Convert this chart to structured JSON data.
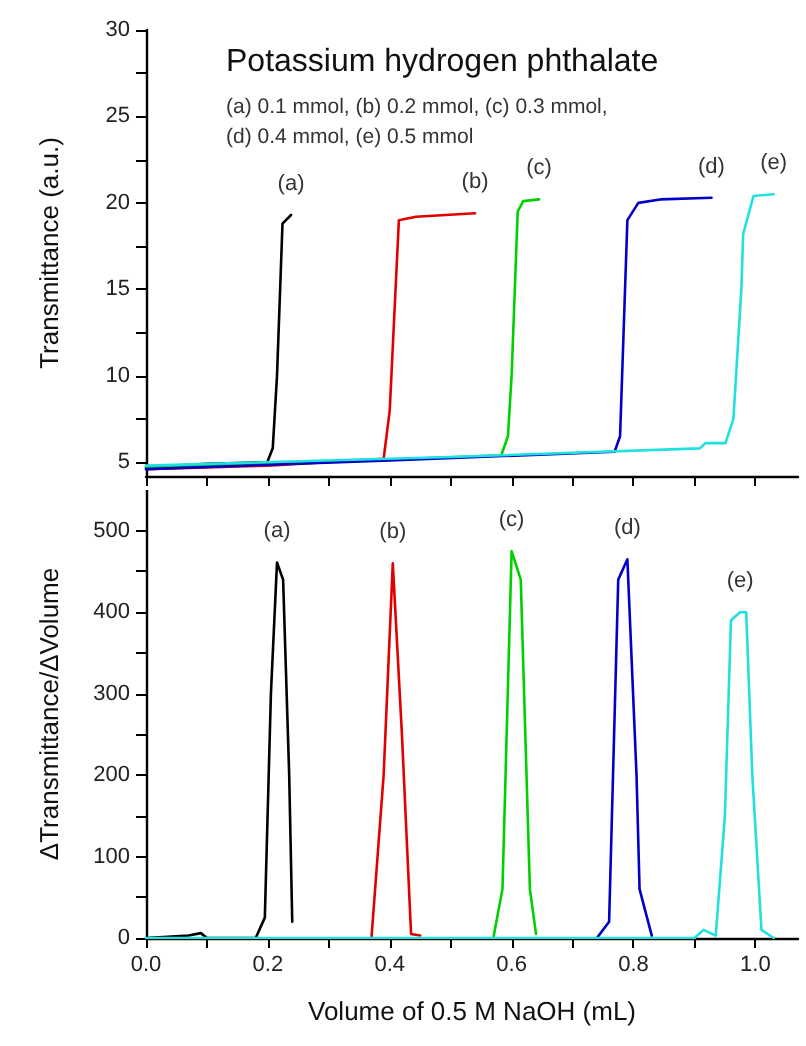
{
  "chart_data": [
    {
      "type": "line",
      "title": "Potassium hydrogen phthalate",
      "subtitle": "(a) 0.1 mmol, (b) 0.2 mmol, (c) 0.3 mmol,\n(d) 0.4 mmol, (e) 0.5 mmol",
      "ylabel": "Transmittance (a.u.)",
      "xlim": [
        0,
        1.07
      ],
      "xticks": [
        {
          "value": 0,
          "label": null
        },
        {
          "value": 0.1,
          "label": null
        },
        {
          "value": 0.2,
          "label": null
        },
        {
          "value": 0.3,
          "label": null
        },
        {
          "value": 0.4,
          "label": null
        },
        {
          "value": 0.5,
          "label": null
        },
        {
          "value": 0.6,
          "label": null
        },
        {
          "value": 0.7,
          "label": null
        },
        {
          "value": 0.8,
          "label": null
        },
        {
          "value": 0.9,
          "label": null
        },
        {
          "value": 1,
          "label": null
        }
      ],
      "ylim": [
        4.2,
        30
      ],
      "yticks": [
        5,
        {
          "value": 7.5,
          "label": null
        },
        10,
        {
          "value": 12.5,
          "label": null
        },
        15,
        {
          "value": 17.5,
          "label": null
        },
        20,
        {
          "value": 22.5,
          "label": null
        },
        25,
        {
          "value": 27.5,
          "label": null
        },
        30
      ],
      "tick_labels": "y",
      "grid": false,
      "marker": "none",
      "line_style": "solid",
      "series": [
        {
          "name": "(a)",
          "color": "#000000",
          "x": [
            0,
            0.1,
            0.199,
            0.208,
            0.215,
            0.224,
            0.238
          ],
          "values": [
            4.7,
            4.9,
            5.0,
            5.8,
            10,
            18.8,
            19.3
          ]
        },
        {
          "name": "(b)",
          "color": "#e00000",
          "x": [
            0,
            0.2,
            0.39,
            0.4,
            0.415,
            0.443,
            0.54
          ],
          "values": [
            4.6,
            4.8,
            5.2,
            8,
            19.0,
            19.2,
            19.4
          ]
        },
        {
          "name": "(c)",
          "color": "#00d000",
          "x": [
            0,
            0.3,
            0.583,
            0.594,
            0.6,
            0.61,
            0.619,
            0.645
          ],
          "values": [
            4.7,
            5.0,
            5.4,
            6.5,
            10,
            19.5,
            20.1,
            20.2
          ]
        },
        {
          "name": "(d)",
          "color": "#0000c8",
          "x": [
            0,
            0.4,
            0.769,
            0.778,
            0.79,
            0.808,
            0.844,
            0.928
          ],
          "values": [
            4.6,
            5.1,
            5.6,
            6.5,
            19,
            20.0,
            20.2,
            20.3
          ]
        },
        {
          "name": "(e)",
          "color": "#20e0e0",
          "x": [
            0,
            0.5,
            0.909,
            0.918,
            0.951,
            0.964,
            0.977,
            0.98,
            0.997,
            1.03
          ],
          "values": [
            4.8,
            5.3,
            5.8,
            6.1,
            6.1,
            7.5,
            15,
            18.2,
            20.4,
            20.5
          ]
        }
      ]
    },
    {
      "type": "line",
      "ylabel": "ΔTransmittance/ΔVolume",
      "xlabel": "Volume of 0.5 M NaOH (mL)",
      "xlim": [
        0,
        1.07
      ],
      "xticks": [
        {
          "value": 0,
          "label": "0.0"
        },
        {
          "value": 0.1,
          "label": null
        },
        {
          "value": 0.2,
          "label": "0.2"
        },
        {
          "value": 0.3,
          "label": null
        },
        {
          "value": 0.4,
          "label": "0.4"
        },
        {
          "value": 0.5,
          "label": null
        },
        {
          "value": 0.6,
          "label": "0.6"
        },
        {
          "value": 0.7,
          "label": null
        },
        {
          "value": 0.8,
          "label": "0.8"
        },
        {
          "value": 0.9,
          "label": null
        },
        {
          "value": 1,
          "label": "1.0"
        }
      ],
      "ylim": [
        0,
        550
      ],
      "yticks": [
        0,
        {
          "value": 50,
          "label": null
        },
        100,
        {
          "value": 150,
          "label": null
        },
        200,
        {
          "value": 250,
          "label": null
        },
        300,
        {
          "value": 350,
          "label": null
        },
        400,
        {
          "value": 450,
          "label": null
        },
        500
      ],
      "grid": false,
      "marker": "none",
      "line_style": "solid",
      "series": [
        {
          "name": "(a)",
          "color": "#000000",
          "x": [
            0,
            0.07,
            0.09,
            0.1,
            0.18,
            0.195,
            0.205,
            0.215,
            0.225,
            0.235,
            0.24
          ],
          "values": [
            0,
            3,
            6,
            0,
            0,
            25,
            300,
            461,
            440,
            200,
            20
          ]
        },
        {
          "name": "(b)",
          "color": "#e00000",
          "x": [
            0.37,
            0.39,
            0.405,
            0.42,
            0.435,
            0.45
          ],
          "values": [
            0,
            200,
            460,
            250,
            5,
            3
          ]
        },
        {
          "name": "(c)",
          "color": "#00d000",
          "x": [
            0.57,
            0.585,
            0.6,
            0.615,
            0.63,
            0.64
          ],
          "values": [
            0,
            60,
            475,
            440,
            60,
            5
          ]
        },
        {
          "name": "(d)",
          "color": "#0000c8",
          "x": [
            0.74,
            0.76,
            0.77,
            0.775,
            0.79,
            0.805,
            0.81,
            0.83
          ],
          "values": [
            0,
            20,
            300,
            440,
            465,
            200,
            60,
            3
          ]
        },
        {
          "name": "(e)",
          "color": "#20e0e0",
          "x": [
            0,
            0.9,
            0.915,
            0.935,
            0.95,
            0.96,
            0.975,
            0.985,
            0.995,
            1.01,
            1.03
          ],
          "values": [
            0,
            0,
            10,
            3,
            150,
            390,
            400,
            400,
            200,
            10,
            0
          ]
        }
      ]
    }
  ]
}
